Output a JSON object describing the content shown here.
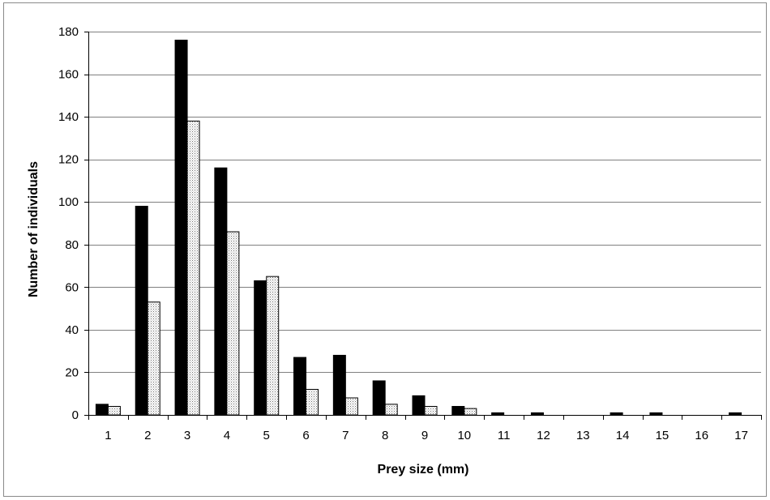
{
  "chart_data": {
    "type": "bar",
    "title": "",
    "xlabel": "Prey size (mm)",
    "ylabel": "Number of individuals",
    "categories": [
      "1",
      "2",
      "3",
      "4",
      "5",
      "6",
      "7",
      "8",
      "9",
      "10",
      "11",
      "12",
      "13",
      "14",
      "15",
      "16",
      "17"
    ],
    "series": [
      {
        "fill": "solid",
        "color": "#000000",
        "values": [
          5,
          98,
          176,
          116,
          63,
          27,
          28,
          16,
          9,
          4,
          1,
          1,
          0,
          1,
          1,
          0,
          1
        ]
      },
      {
        "fill": "dotted",
        "color": "#ffffff",
        "values": [
          4,
          53,
          138,
          86,
          65,
          12,
          8,
          5,
          4,
          3,
          0,
          0,
          0,
          0,
          0,
          0,
          0
        ]
      }
    ],
    "ylim": [
      0,
      180
    ],
    "yticks": [
      0,
      20,
      40,
      60,
      80,
      100,
      120,
      140,
      160,
      180
    ],
    "grid": "horizontal",
    "legend": "none",
    "colors": {
      "bar_primary": "#000000",
      "bar_pattern_dot": "#777777",
      "gridline": "#808080",
      "axis": "#000000"
    }
  }
}
